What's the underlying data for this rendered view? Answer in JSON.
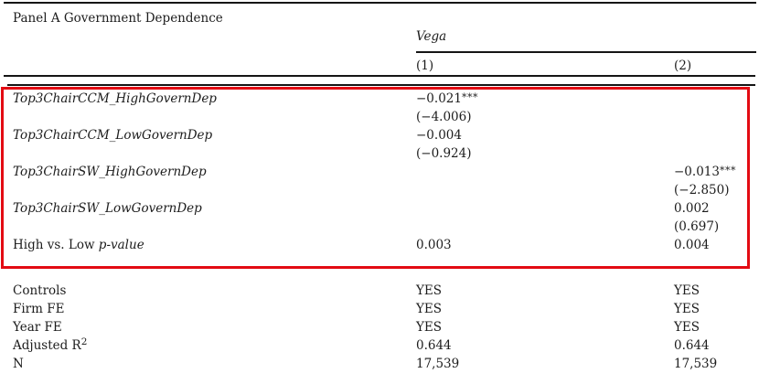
{
  "panel_title": "Panel A Government Dependence",
  "header": {
    "dep_var_label": "Vega",
    "col1_label": "(1)",
    "col2_label": "(2)"
  },
  "coef_rows": [
    {
      "label_pre": "",
      "label_var": "Top3ChairCCM_HighGovernDep",
      "c1": "−0.021",
      "c1_stars": "***",
      "c2": "",
      "c2_stars": ""
    },
    {
      "label_pre": "",
      "label_var": "",
      "c1": "(−4.006)",
      "c1_stars": "",
      "c2": "",
      "c2_stars": ""
    },
    {
      "label_pre": "",
      "label_var": "Top3ChairCCM_LowGovernDep",
      "c1": "−0.004",
      "c1_stars": "",
      "c2": "",
      "c2_stars": ""
    },
    {
      "label_pre": "",
      "label_var": "",
      "c1": "(−0.924)",
      "c1_stars": "",
      "c2": "",
      "c2_stars": ""
    },
    {
      "label_pre": "",
      "label_var": "Top3ChairSW_HighGovernDep",
      "c1": "",
      "c1_stars": "",
      "c2": "−0.013",
      "c2_stars": "***"
    },
    {
      "label_pre": "",
      "label_var": "",
      "c1": "",
      "c1_stars": "",
      "c2": "(−2.850)",
      "c2_stars": ""
    },
    {
      "label_pre": "",
      "label_var": "Top3ChairSW_LowGovernDep",
      "c1": "",
      "c1_stars": "",
      "c2": "0.002",
      "c2_stars": ""
    },
    {
      "label_pre": "",
      "label_var": "",
      "c1": "",
      "c1_stars": "",
      "c2": "(0.697)",
      "c2_stars": ""
    },
    {
      "label_pre": "High vs. Low ",
      "label_var": "p-value",
      "c1": "0.003",
      "c1_stars": "",
      "c2": "0.004",
      "c2_stars": ""
    }
  ],
  "stat_rows": [
    {
      "label": "Controls",
      "label_sup": "",
      "c1": "YES",
      "c2": "YES"
    },
    {
      "label": "Firm FE",
      "label_sup": "",
      "c1": "YES",
      "c2": "YES"
    },
    {
      "label": "Year FE",
      "label_sup": "",
      "c1": "YES",
      "c2": "YES"
    },
    {
      "label": "Adjusted R",
      "label_sup": "2",
      "c1": "0.644",
      "c2": "0.644"
    },
    {
      "label": "N",
      "label_sup": "",
      "c1": "17,539",
      "c2": "17,539"
    }
  ],
  "colors": {
    "highlight_box": "#e30b13",
    "rule": "#151515",
    "text": "#1c1c1c"
  }
}
